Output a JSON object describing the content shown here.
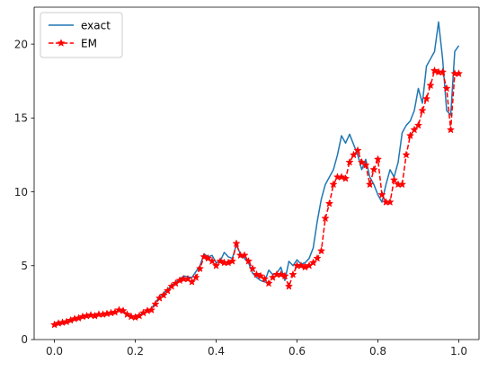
{
  "chart_data": {
    "type": "line",
    "title": "",
    "xlabel": "",
    "ylabel": "",
    "xlim": [
      -0.05,
      1.05
    ],
    "ylim": [
      0,
      22.5
    ],
    "xticks": [
      0.0,
      0.2,
      0.4,
      0.6,
      0.8,
      1.0
    ],
    "xtick_labels": [
      "0.0",
      "0.2",
      "0.4",
      "0.6",
      "0.8",
      "1.0"
    ],
    "yticks": [
      0,
      5,
      10,
      15,
      20
    ],
    "ytick_labels": [
      "0",
      "5",
      "10",
      "15",
      "20"
    ],
    "grid": false,
    "legend_position": "upper-left",
    "series": [
      {
        "name": "exact",
        "color": "#1f77b4",
        "style": "solid",
        "marker": "none",
        "x": [
          0.0,
          0.02,
          0.04,
          0.06,
          0.08,
          0.1,
          0.12,
          0.14,
          0.16,
          0.18,
          0.2,
          0.22,
          0.24,
          0.26,
          0.28,
          0.3,
          0.32,
          0.34,
          0.36,
          0.37,
          0.38,
          0.39,
          0.4,
          0.41,
          0.42,
          0.43,
          0.44,
          0.45,
          0.46,
          0.47,
          0.48,
          0.49,
          0.5,
          0.51,
          0.52,
          0.53,
          0.54,
          0.55,
          0.56,
          0.57,
          0.58,
          0.59,
          0.6,
          0.61,
          0.62,
          0.63,
          0.64,
          0.65,
          0.66,
          0.67,
          0.68,
          0.69,
          0.7,
          0.71,
          0.72,
          0.73,
          0.74,
          0.75,
          0.76,
          0.77,
          0.78,
          0.79,
          0.8,
          0.81,
          0.82,
          0.83,
          0.84,
          0.85,
          0.86,
          0.87,
          0.88,
          0.89,
          0.9,
          0.91,
          0.92,
          0.93,
          0.94,
          0.95,
          0.96,
          0.97,
          0.98,
          0.99,
          1.0
        ],
        "y": [
          1.0,
          1.1,
          1.25,
          1.45,
          1.65,
          1.7,
          1.75,
          1.8,
          1.95,
          1.7,
          1.55,
          1.8,
          2.1,
          2.9,
          3.4,
          3.9,
          4.3,
          4.2,
          5.0,
          5.8,
          5.6,
          5.7,
          5.2,
          5.3,
          5.9,
          5.6,
          5.5,
          6.4,
          5.8,
          5.5,
          5.2,
          4.5,
          4.2,
          4.0,
          3.9,
          4.7,
          4.4,
          4.5,
          4.9,
          4.0,
          5.3,
          5.0,
          5.4,
          5.1,
          5.2,
          5.5,
          6.2,
          8.0,
          9.5,
          10.5,
          11.0,
          11.5,
          12.5,
          13.8,
          13.3,
          13.9,
          13.2,
          12.5,
          11.5,
          12.2,
          11.0,
          10.5,
          9.8,
          9.3,
          10.5,
          11.5,
          11.0,
          12.0,
          14.0,
          14.5,
          14.8,
          15.5,
          17.0,
          16.0,
          18.5,
          19.0,
          19.5,
          21.5,
          19.0,
          15.5,
          15.2,
          19.5,
          19.9
        ]
      },
      {
        "name": "EM",
        "color": "#ff0000",
        "style": "dashed",
        "marker": "star",
        "x": [
          0.0,
          0.01,
          0.02,
          0.03,
          0.04,
          0.05,
          0.06,
          0.07,
          0.08,
          0.09,
          0.1,
          0.11,
          0.12,
          0.13,
          0.14,
          0.15,
          0.16,
          0.17,
          0.18,
          0.19,
          0.2,
          0.21,
          0.22,
          0.23,
          0.24,
          0.25,
          0.26,
          0.27,
          0.28,
          0.29,
          0.3,
          0.31,
          0.32,
          0.33,
          0.34,
          0.35,
          0.36,
          0.37,
          0.38,
          0.39,
          0.4,
          0.41,
          0.42,
          0.43,
          0.44,
          0.45,
          0.46,
          0.47,
          0.48,
          0.49,
          0.5,
          0.51,
          0.52,
          0.53,
          0.54,
          0.55,
          0.56,
          0.57,
          0.58,
          0.59,
          0.6,
          0.61,
          0.62,
          0.63,
          0.64,
          0.65,
          0.66,
          0.67,
          0.68,
          0.69,
          0.7,
          0.71,
          0.72,
          0.73,
          0.74,
          0.75,
          0.76,
          0.77,
          0.78,
          0.79,
          0.8,
          0.81,
          0.82,
          0.83,
          0.84,
          0.85,
          0.86,
          0.87,
          0.88,
          0.89,
          0.9,
          0.91,
          0.92,
          0.93,
          0.94,
          0.95,
          0.96,
          0.97,
          0.98,
          0.99,
          1.0
        ],
        "y": [
          1.0,
          1.1,
          1.15,
          1.2,
          1.3,
          1.4,
          1.45,
          1.55,
          1.6,
          1.65,
          1.6,
          1.7,
          1.7,
          1.75,
          1.8,
          1.85,
          2.0,
          1.95,
          1.7,
          1.55,
          1.5,
          1.6,
          1.8,
          1.95,
          2.0,
          2.4,
          2.8,
          3.0,
          3.3,
          3.6,
          3.8,
          4.0,
          4.1,
          4.1,
          3.9,
          4.2,
          4.8,
          5.6,
          5.5,
          5.3,
          5.0,
          5.3,
          5.2,
          5.2,
          5.3,
          6.5,
          5.7,
          5.7,
          5.3,
          4.8,
          4.4,
          4.3,
          4.1,
          3.8,
          4.2,
          4.4,
          4.4,
          4.3,
          3.6,
          4.4,
          5.0,
          5.0,
          4.9,
          5.0,
          5.2,
          5.5,
          6.0,
          8.2,
          9.2,
          10.5,
          11.0,
          11.0,
          10.9,
          12.0,
          12.5,
          12.8,
          12.0,
          11.8,
          10.5,
          11.5,
          12.2,
          9.8,
          9.3,
          9.3,
          10.8,
          10.5,
          10.5,
          12.5,
          13.8,
          14.2,
          14.5,
          15.5,
          16.3,
          17.2,
          18.2,
          18.1,
          18.1,
          17.0,
          14.2,
          18.0,
          18.0
        ]
      }
    ],
    "legend": [
      {
        "label": "exact"
      },
      {
        "label": "EM"
      }
    ]
  }
}
